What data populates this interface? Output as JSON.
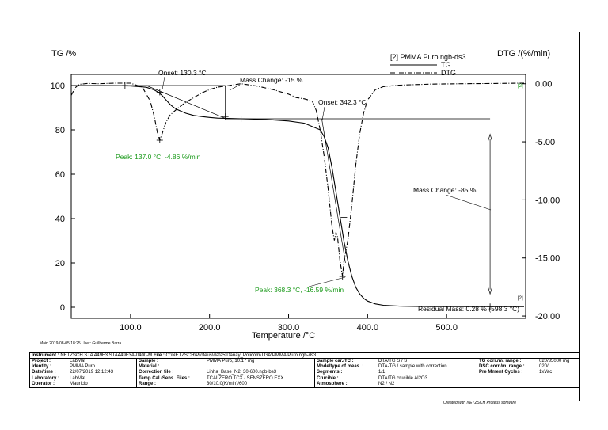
{
  "chart_data": {
    "type": "line",
    "title": "[2] PMMA Puro.ngb-ds3",
    "xlabel": "Temperature /°C",
    "ylabel_left": "TG /%",
    "ylabel_right": "DTG /(%/min)",
    "xlim": [
      25,
      600
    ],
    "ylim_left": [
      -5,
      105
    ],
    "ylim_right": [
      -20.2,
      0.8
    ],
    "x_ticks": [
      "100.0",
      "200.0",
      "300.0",
      "400.0",
      "500.0"
    ],
    "x_tick_values": [
      100,
      200,
      300,
      400,
      500
    ],
    "y_left_ticks": [
      "0",
      "20",
      "40",
      "60",
      "80",
      "100"
    ],
    "y_left_tick_values": [
      0,
      20,
      40,
      60,
      80,
      100
    ],
    "y_right_ticks": [
      "0.00",
      "-5.00",
      "-10.00",
      "-15.00",
      "-20.00"
    ],
    "y_right_tick_values": [
      0,
      -5,
      -10,
      -15,
      -20
    ],
    "grid": false,
    "legend": "top-right",
    "series": [
      {
        "name": "TG",
        "axis": "left",
        "color": "#000000",
        "style": "solid",
        "x": [
          25,
          60,
          100,
          120,
          130,
          135,
          140,
          145,
          150,
          155,
          160,
          170,
          180,
          190,
          200,
          210,
          220,
          240,
          260,
          280,
          300,
          320,
          340,
          345,
          350,
          355,
          360,
          365,
          370,
          375,
          380,
          385,
          390,
          395,
          400,
          410,
          420,
          440,
          460,
          480,
          500,
          550,
          598
        ],
        "values": [
          100,
          100,
          99.8,
          99.2,
          98,
          97,
          95.5,
          93.5,
          91.5,
          90,
          89,
          87.5,
          86.5,
          86,
          85.6,
          85.3,
          85.2,
          85,
          84.8,
          84.5,
          84,
          83,
          80,
          77,
          72,
          63,
          52,
          41,
          30,
          21,
          14,
          9,
          6,
          4,
          2.8,
          1.5,
          0.9,
          0.5,
          0.35,
          0.3,
          0.28,
          0.28,
          0.28
        ]
      },
      {
        "name": "DTG",
        "axis": "right",
        "color": "#000000",
        "style": "dashdot",
        "x": [
          25,
          30,
          35,
          45,
          60,
          80,
          100,
          115,
          125,
          130,
          134,
          137,
          140,
          145,
          150,
          160,
          170,
          180,
          190,
          200,
          210,
          220,
          230,
          240,
          260,
          280,
          300,
          310,
          320,
          330,
          335,
          340,
          345,
          350,
          355,
          358,
          360,
          362,
          365,
          368.3,
          370,
          375,
          380,
          385,
          390,
          395,
          400,
          410,
          420,
          440,
          480,
          520,
          560,
          598
        ],
        "values": [
          -1.0,
          -0.35,
          -0.05,
          0.02,
          0.0,
          0.05,
          0.05,
          -0.3,
          -1.5,
          -2.8,
          -4.2,
          -4.86,
          -4.3,
          -3.3,
          -2.7,
          -2.1,
          -1.6,
          -1.2,
          -0.8,
          -0.5,
          -0.3,
          -0.2,
          -0.1,
          0.0,
          -0.2,
          -0.5,
          -0.9,
          -1.2,
          -1.3,
          -1.5,
          -2.3,
          -4.0,
          -6.2,
          -9.0,
          -12.3,
          -13.5,
          -12.8,
          -13.2,
          -15.2,
          -16.59,
          -15.3,
          -13.5,
          -10.5,
          -7.0,
          -4.3,
          -2.5,
          -1.4,
          -0.5,
          -0.25,
          -0.12,
          -0.03,
          0.0,
          0.02,
          0.05
        ]
      }
    ],
    "annotations": [
      {
        "text": "Onset: 130.3 °C",
        "color": "#000000"
      },
      {
        "text": "Mass Change: -15 %",
        "color": "#000000"
      },
      {
        "text": "Onset: 342.3 °C",
        "color": "#000000"
      },
      {
        "text": "Mass Change: -85 %",
        "color": "#000000"
      },
      {
        "text": "Residual Mass: 0.28 % (598.3 °C)",
        "color": "#000000"
      },
      {
        "text": "Peak: 137.0 °C, -4.86 %/min",
        "color": "#1a9a1a"
      },
      {
        "text": "Peak: 368.3 °C, -16.59 %/min",
        "color": "#1a9a1a"
      }
    ],
    "curve_markers": [
      "[2]",
      "[2]"
    ]
  },
  "meta_line": "Main    2019-08-05 18:25    User: Guilherme Barra",
  "instrument": {
    "label": "Instrument :",
    "value": "NETZSCH STA 449F3 STA449F3A-0400-M",
    "file_label": "File :",
    "file_value": "C:\\NETZSCH\\Proteus\\data5\\Danay_Policom\\TGA\\PMMA Puro.ngb-ds3"
  },
  "info": {
    "col1": [
      {
        "k": "Project :",
        "v": "LabMat"
      },
      {
        "k": "Identity :",
        "v": "PMMA Puro"
      },
      {
        "k": "Date/time :",
        "v": "22/07/2019 12:12:43"
      },
      {
        "k": "Laboratory :",
        "v": "LabMat"
      },
      {
        "k": "Operator :",
        "v": "Mauricio"
      }
    ],
    "col2": [
      {
        "k": "Sample :",
        "v": "PMMA Puro, 10.17 mg"
      },
      {
        "k": "Material :",
        "v": ""
      },
      {
        "k": "Correction file :",
        "v": "Linha_Base_N2_30-600.ngb-bs3"
      },
      {
        "k": "Temp.Cal./Sens. Files :",
        "v": "TCALZERO.TCX / SENSZERO.EXX"
      },
      {
        "k": "Range :",
        "v": "30/10.0(K/min)/600"
      }
    ],
    "col3": [
      {
        "k": "Sample car./TC :",
        "v": "DTA/TG S / S"
      },
      {
        "k": "Mode/type of meas. :",
        "v": "DTA-TG / sample with correction"
      },
      {
        "k": "Segments :",
        "v": "1/1"
      },
      {
        "k": "Crucible :",
        "v": "DTA/TG crucible Al2O3"
      },
      {
        "k": "Atmosphere :",
        "v": "N2 / N2"
      }
    ],
    "col4": [
      {
        "k": "TG corr./m. range :",
        "v": "020/35000 mg"
      },
      {
        "k": "DSC corr./m. range :",
        "v": "020/"
      },
      {
        "k": "Pre Mment Cycles :",
        "v": "1xVac"
      }
    ]
  },
  "footer": "Created with NETZSCH Proteus software"
}
